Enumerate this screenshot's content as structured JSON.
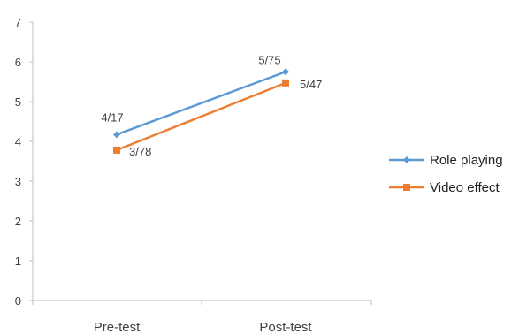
{
  "chart_data": {
    "type": "line",
    "categories": [
      "Pre-test",
      "Post-test"
    ],
    "ylim": [
      0,
      7
    ],
    "yticks": [
      0,
      1,
      2,
      3,
      4,
      5,
      6,
      7
    ],
    "grid": false,
    "legend_position": "right",
    "series": [
      {
        "name": "Role playing",
        "values": [
          4.17,
          5.75
        ],
        "data_labels": [
          "4/17",
          "5/75"
        ],
        "color": "#5B9BD5",
        "marker": "diamond"
      },
      {
        "name": "Video effect",
        "values": [
          3.78,
          5.47
        ],
        "data_labels": [
          "3/78",
          "5/47"
        ],
        "color": "#ED7D31",
        "marker": "square"
      }
    ]
  }
}
